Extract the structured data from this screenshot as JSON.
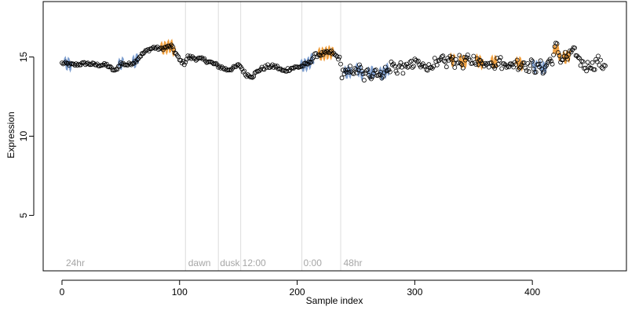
{
  "chart_data": {
    "type": "scatter",
    "xlabel": "Sample index",
    "ylabel": "Expression",
    "xlim": [
      -16,
      480
    ],
    "ylim": [
      1.5,
      18.5
    ],
    "x_ticks": [
      0,
      100,
      200,
      300,
      400
    ],
    "y_ticks": [
      5,
      10,
      15
    ],
    "grid": false,
    "vlines": [
      105,
      133,
      152,
      204,
      237
    ],
    "annotations": [
      {
        "label": "24hr",
        "x": 2
      },
      {
        "label": "dawn",
        "x": 106
      },
      {
        "label": "dusk",
        "x": 133
      },
      {
        "label": "12:00",
        "x": 152
      },
      {
        "label": "0:00",
        "x": 204
      },
      {
        "label": "48hr",
        "x": 238
      }
    ],
    "annotation_y": 2,
    "colors": {
      "points_fill": "#ffffff",
      "points_stroke": "#000000",
      "up": "#f0a040",
      "down": "#7f9fcf",
      "vline": "#dcdcdc",
      "annotation": "#a6a6a6"
    },
    "anchors": [
      [
        1,
        14.6
      ],
      [
        10,
        14.5
      ],
      [
        20,
        14.6
      ],
      [
        30,
        14.5
      ],
      [
        38,
        14.5
      ],
      [
        45,
        14.1
      ],
      [
        50,
        14.6
      ],
      [
        56,
        14.5
      ],
      [
        62,
        14.7
      ],
      [
        67,
        15.1
      ],
      [
        72,
        15.4
      ],
      [
        78,
        15.6
      ],
      [
        84,
        15.5
      ],
      [
        88,
        15.6
      ],
      [
        93,
        15.7
      ],
      [
        97,
        15.2
      ],
      [
        100,
        14.8
      ],
      [
        104,
        14.6
      ],
      [
        107,
        15.0
      ],
      [
        115,
        14.9
      ],
      [
        122,
        14.8
      ],
      [
        128,
        14.6
      ],
      [
        134,
        14.4
      ],
      [
        140,
        14.2
      ],
      [
        146,
        14.3
      ],
      [
        151,
        14.5
      ],
      [
        156,
        13.9
      ],
      [
        162,
        13.8
      ],
      [
        168,
        14.2
      ],
      [
        175,
        14.4
      ],
      [
        182,
        14.4
      ],
      [
        188,
        14.1
      ],
      [
        195,
        14.3
      ],
      [
        203,
        14.4
      ],
      [
        210,
        14.6
      ],
      [
        215,
        15.1
      ],
      [
        222,
        15.2
      ],
      [
        229,
        15.3
      ],
      [
        236,
        14.9
      ],
      [
        238,
        13.9
      ],
      [
        245,
        14.1
      ],
      [
        252,
        14.2
      ],
      [
        258,
        13.8
      ],
      [
        265,
        14.1
      ],
      [
        272,
        13.9
      ],
      [
        280,
        14.4
      ],
      [
        290,
        14.3
      ],
      [
        300,
        14.6
      ],
      [
        310,
        14.4
      ],
      [
        320,
        14.6
      ],
      [
        330,
        14.8
      ],
      [
        340,
        14.7
      ],
      [
        350,
        14.8
      ],
      [
        360,
        14.6
      ],
      [
        370,
        14.7
      ],
      [
        380,
        14.5
      ],
      [
        390,
        14.6
      ],
      [
        400,
        14.4
      ],
      [
        410,
        14.3
      ],
      [
        416,
        14.8
      ],
      [
        420,
        15.6
      ],
      [
        425,
        14.9
      ],
      [
        430,
        15.0
      ],
      [
        435,
        15.5
      ],
      [
        440,
        14.6
      ],
      [
        448,
        14.4
      ],
      [
        455,
        14.7
      ],
      [
        461,
        14.5
      ]
    ],
    "segment_noise": [
      {
        "from": 0,
        "to": 104,
        "amp": 0.1
      },
      {
        "from": 105,
        "to": 236,
        "amp": 0.12
      },
      {
        "from": 237,
        "to": 462,
        "amp": 0.32
      }
    ],
    "n_points": 463,
    "oscillations": [
      {
        "from": 2,
        "to": 8,
        "color": "down"
      },
      {
        "from": 48,
        "to": 52,
        "color": "down"
      },
      {
        "from": 60,
        "to": 65,
        "color": "down"
      },
      {
        "from": 84,
        "to": 96,
        "color": "up"
      },
      {
        "from": 203,
        "to": 214,
        "color": "down"
      },
      {
        "from": 218,
        "to": 231,
        "color": "up"
      },
      {
        "from": 240,
        "to": 246,
        "color": "down"
      },
      {
        "from": 250,
        "to": 256,
        "color": "down"
      },
      {
        "from": 260,
        "to": 266,
        "color": "down"
      },
      {
        "from": 270,
        "to": 278,
        "color": "down"
      },
      {
        "from": 330,
        "to": 334,
        "color": "up"
      },
      {
        "from": 338,
        "to": 344,
        "color": "up"
      },
      {
        "from": 352,
        "to": 358,
        "color": "up"
      },
      {
        "from": 365,
        "to": 370,
        "color": "up"
      },
      {
        "from": 386,
        "to": 392,
        "color": "up"
      },
      {
        "from": 400,
        "to": 404,
        "color": "down"
      },
      {
        "from": 406,
        "to": 412,
        "color": "down"
      },
      {
        "from": 418,
        "to": 424,
        "color": "up"
      },
      {
        "from": 426,
        "to": 432,
        "color": "up"
      }
    ]
  }
}
